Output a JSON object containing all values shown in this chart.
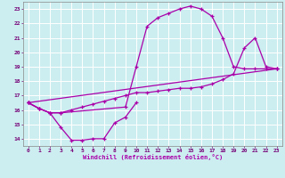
{
  "bg_color": "#cceef0",
  "grid_color": "#ffffff",
  "line_color": "#aa00aa",
  "xlabel": "Windchill (Refroidissement éolien,°C)",
  "xlim": [
    -0.5,
    23.5
  ],
  "ylim": [
    13.5,
    23.5
  ],
  "xticks": [
    0,
    1,
    2,
    3,
    4,
    5,
    6,
    7,
    8,
    9,
    10,
    11,
    12,
    13,
    14,
    15,
    16,
    17,
    18,
    19,
    20,
    21,
    22,
    23
  ],
  "yticks": [
    14,
    15,
    16,
    17,
    18,
    19,
    20,
    21,
    22,
    23
  ],
  "curve_loop_x": [
    0,
    1,
    2,
    3,
    4,
    5,
    6,
    7,
    8,
    9,
    10
  ],
  "curve_loop_y": [
    16.5,
    16.1,
    15.8,
    14.8,
    13.9,
    13.9,
    14.0,
    14.0,
    15.1,
    15.5,
    16.5
  ],
  "curve_arch_x": [
    0,
    1,
    2,
    3,
    9,
    10,
    11,
    12,
    13,
    14,
    15,
    16,
    17,
    18,
    19,
    20,
    21,
    22,
    23
  ],
  "curve_arch_y": [
    16.5,
    16.1,
    15.8,
    15.8,
    16.2,
    19.0,
    21.8,
    22.4,
    22.7,
    23.0,
    23.2,
    23.0,
    22.5,
    21.0,
    19.0,
    18.85,
    18.85,
    18.85,
    18.85
  ],
  "curve_mid_x": [
    0,
    1,
    2,
    3,
    4,
    5,
    6,
    7,
    8,
    9,
    10,
    11,
    12,
    13,
    14,
    15,
    16,
    17,
    18,
    19,
    20,
    21,
    22,
    23
  ],
  "curve_mid_y": [
    16.5,
    16.1,
    15.8,
    15.8,
    16.0,
    16.2,
    16.4,
    16.6,
    16.8,
    17.0,
    17.2,
    17.2,
    17.3,
    17.4,
    17.5,
    17.5,
    17.6,
    17.8,
    18.1,
    18.5,
    20.3,
    21.0,
    19.0,
    18.85
  ],
  "curve_line_x": [
    0,
    23
  ],
  "curve_line_y": [
    16.5,
    18.85
  ]
}
